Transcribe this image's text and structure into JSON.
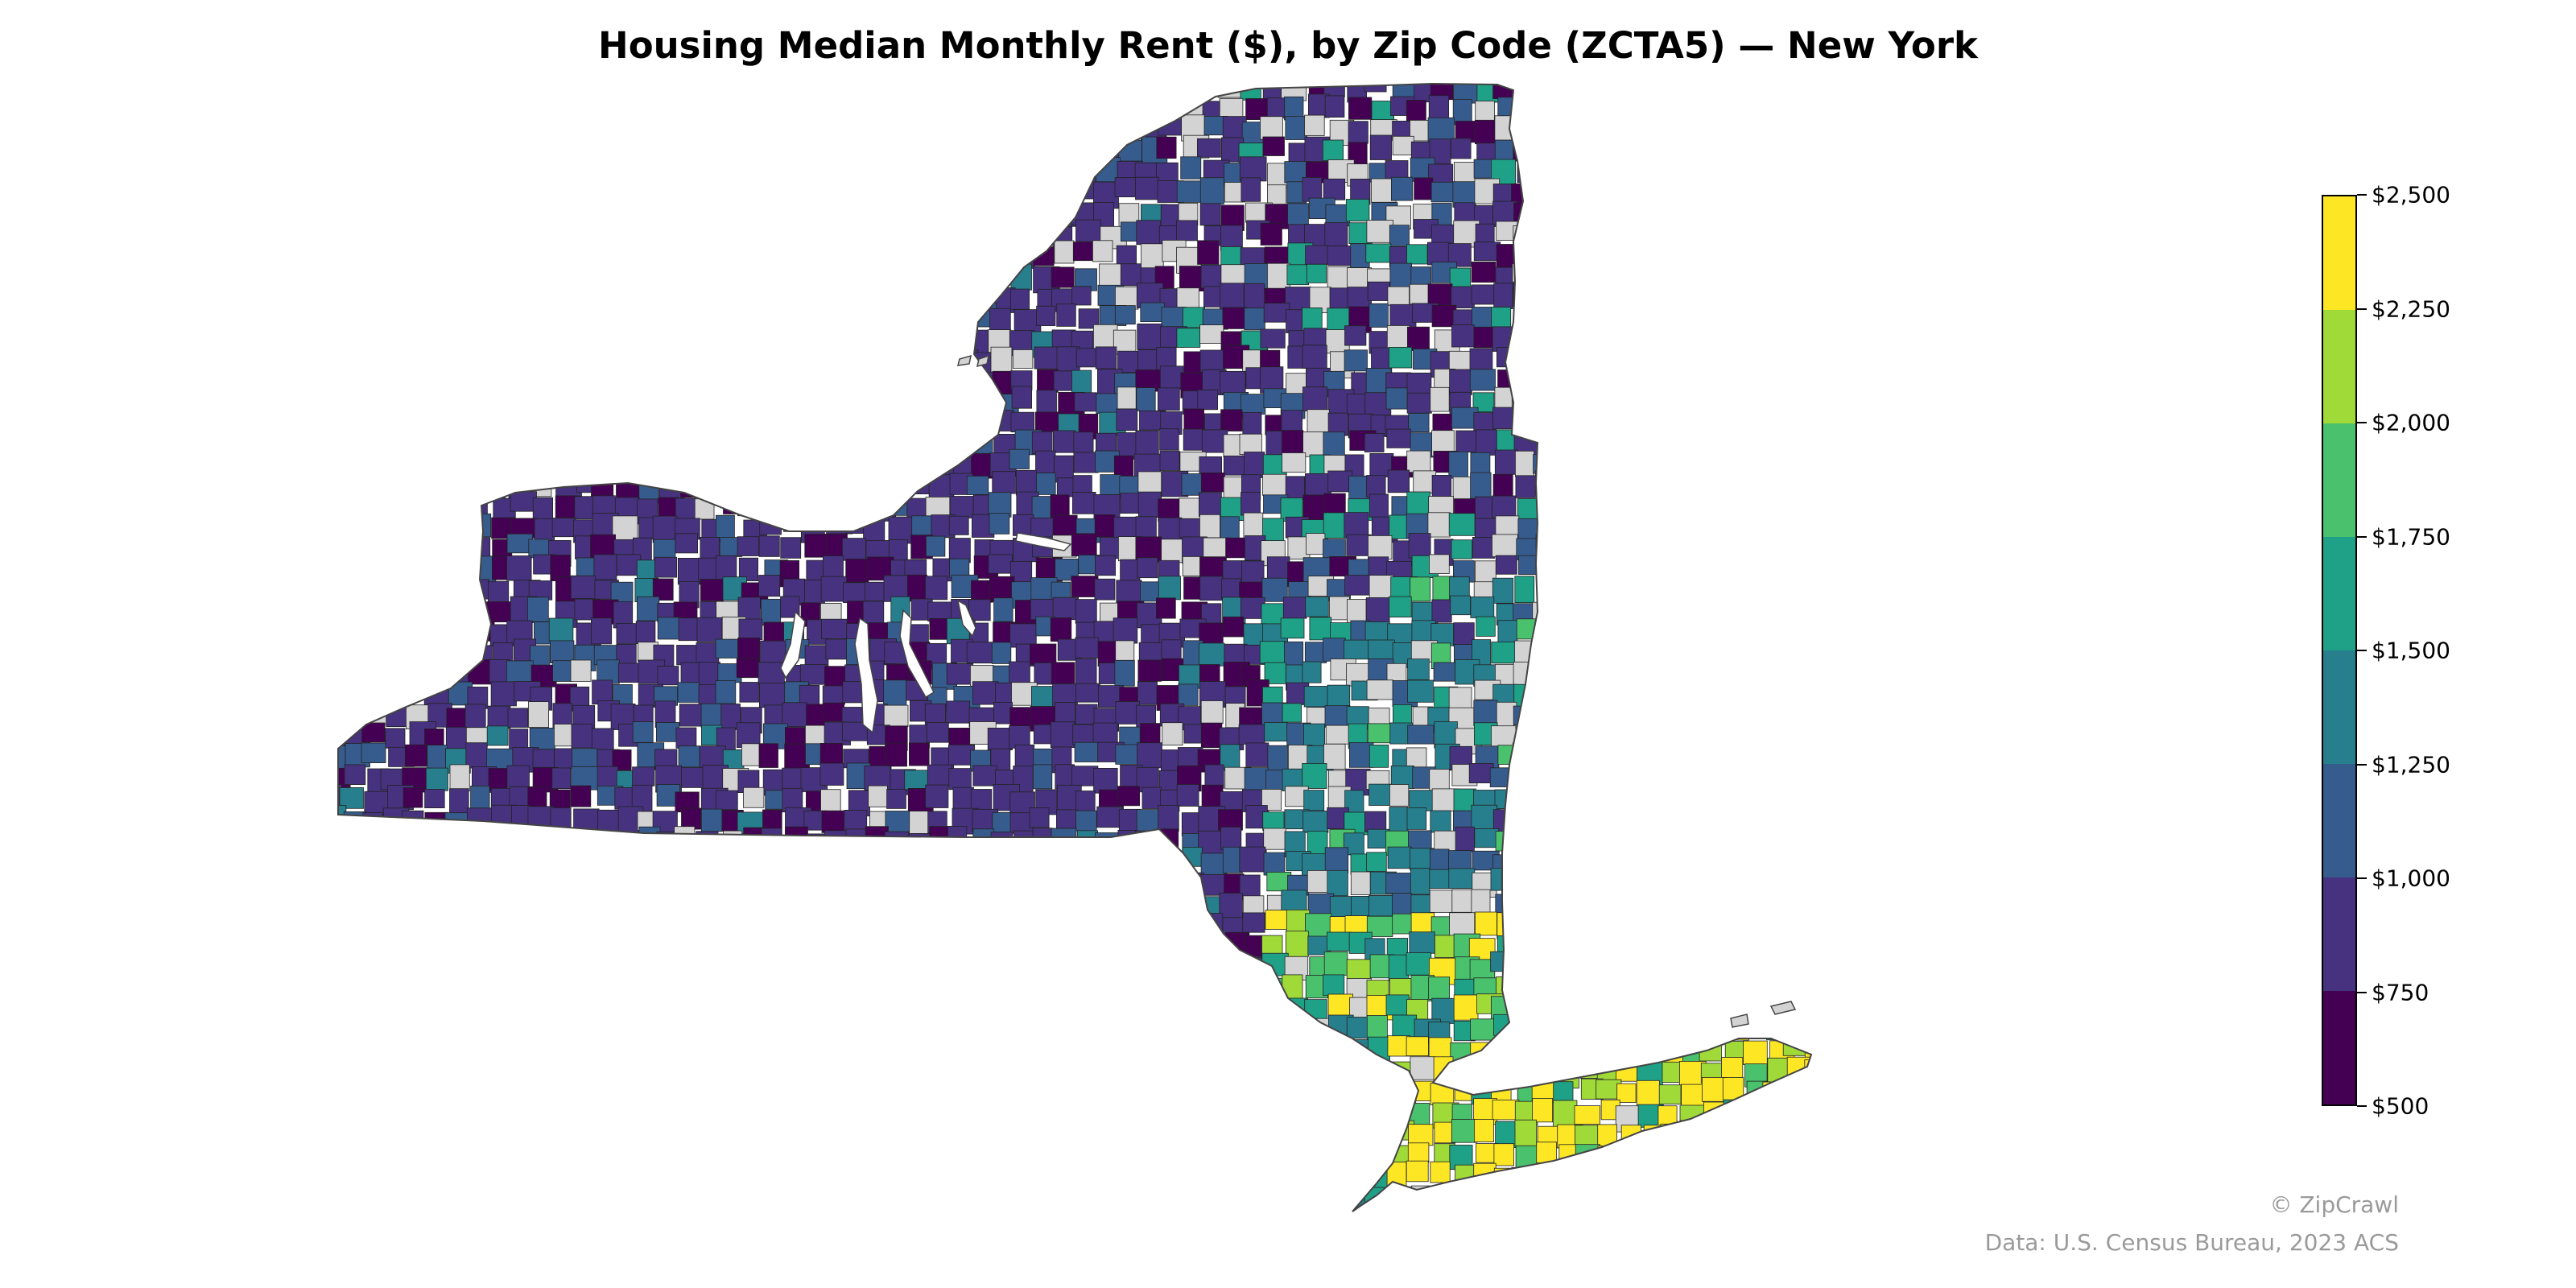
{
  "title": "Housing Median Monthly Rent ($), by Zip Code (ZCTA5) — New York",
  "colorbar": {
    "ticks": [
      "$2,500",
      "$2,250",
      "$2,000",
      "$1,750",
      "$1,500",
      "$1,250",
      "$1,000",
      "$750",
      "$500"
    ],
    "colors": [
      "#fde725",
      "#a0da39",
      "#4ac16d",
      "#1fa187",
      "#277f8e",
      "#365c8d",
      "#46327e",
      "#440154"
    ],
    "min": 500,
    "max": 2500,
    "step": 250
  },
  "no_data_color": "#d3d3d3",
  "credits": {
    "brand": "© ZipCrawl",
    "source": "Data: U.S. Census Bureau, 2023 ACS"
  }
}
